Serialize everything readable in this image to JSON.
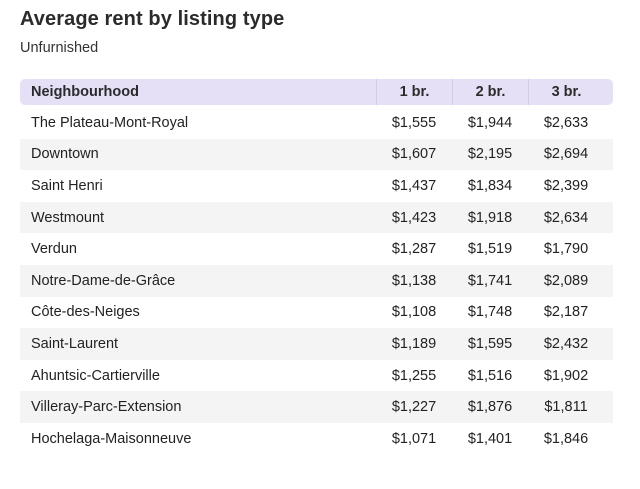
{
  "chart_data": {
    "type": "table",
    "title": "Average rent by listing type",
    "subtitle": "Unfurnished",
    "columns": [
      "Neighbourhood",
      "1 br.",
      "2 br.",
      "3 br."
    ],
    "rows": [
      [
        "The Plateau-Mont-Royal",
        "$1,555",
        "$1,944",
        "$2,633"
      ],
      [
        "Downtown",
        "$1,607",
        "$2,195",
        "$2,694"
      ],
      [
        "Saint Henri",
        "$1,437",
        "$1,834",
        "$2,399"
      ],
      [
        "Westmount",
        "$1,423",
        "$1,918",
        "$2,634"
      ],
      [
        "Verdun",
        "$1,287",
        "$1,519",
        "$1,790"
      ],
      [
        "Notre-Dame-de-Grâce",
        "$1,138",
        "$1,741",
        "$2,089"
      ],
      [
        "Côte-des-Neiges",
        "$1,108",
        "$1,748",
        "$2,187"
      ],
      [
        "Saint-Laurent",
        "$1,189",
        "$1,595",
        "$2,432"
      ],
      [
        "Ahuntsic-Cartierville",
        "$1,255",
        "$1,516",
        "$1,902"
      ],
      [
        "Villeray-Parc-Extension",
        "$1,227",
        "$1,876",
        "$1,811"
      ],
      [
        "Hochelaga-Maisonneuve",
        "$1,071",
        "$1,401",
        "$1,846"
      ]
    ],
    "colors": {
      "header_background": "#e6e0f7",
      "striped_row_background": "#f4f4f4"
    }
  }
}
